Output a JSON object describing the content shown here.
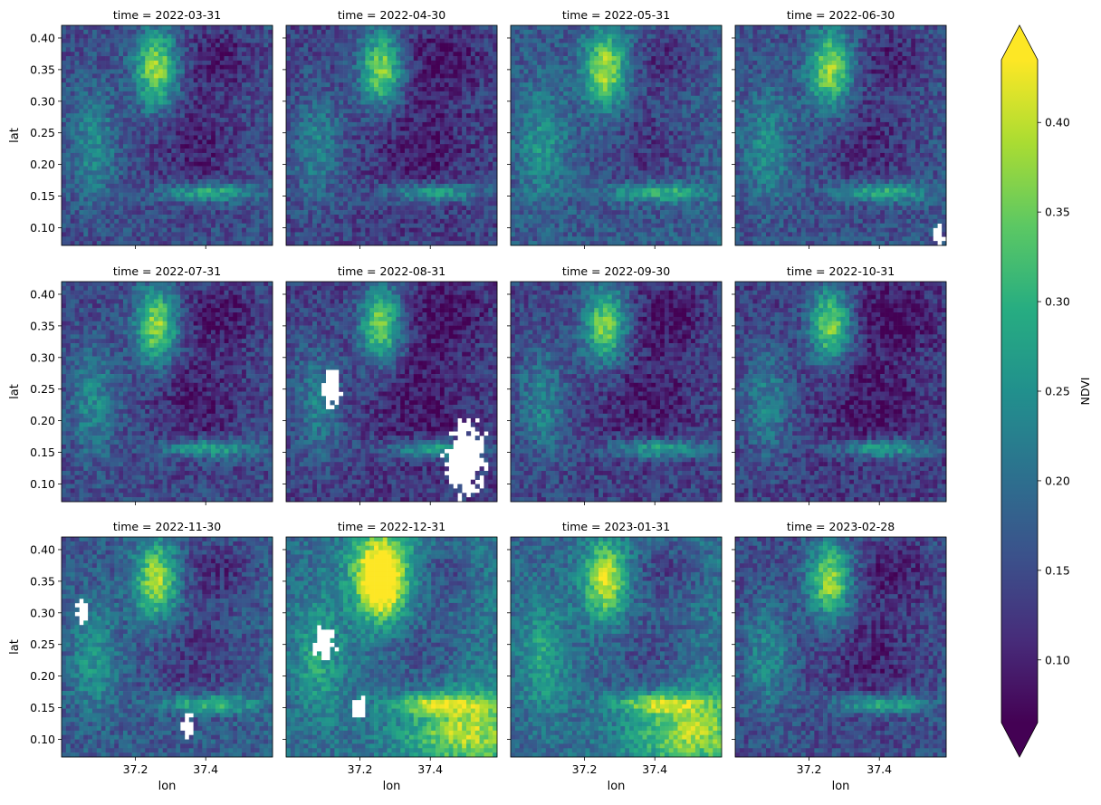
{
  "chart_data": {
    "type": "heatmap",
    "layout": "3x4 facet grid of raster maps",
    "variable": "NDVI",
    "facet_prefix": "time = ",
    "facets": [
      {
        "time": "2022-03-31",
        "row": 0,
        "col": 0,
        "missing_regions": []
      },
      {
        "time": "2022-04-30",
        "row": 0,
        "col": 1,
        "missing_regions": []
      },
      {
        "time": "2022-05-31",
        "row": 0,
        "col": 2,
        "missing_regions": []
      },
      {
        "time": "2022-06-30",
        "row": 0,
        "col": 3,
        "missing_regions": [
          {
            "lon": 37.57,
            "lat": 0.09,
            "r": 0.02
          }
        ]
      },
      {
        "time": "2022-07-31",
        "row": 1,
        "col": 0,
        "missing_regions": []
      },
      {
        "time": "2022-08-31",
        "row": 1,
        "col": 1,
        "missing_regions": [
          {
            "lon": 37.5,
            "lat": 0.14,
            "r": 0.06
          },
          {
            "lon": 37.12,
            "lat": 0.25,
            "r": 0.03
          }
        ]
      },
      {
        "time": "2022-09-30",
        "row": 1,
        "col": 2,
        "missing_regions": []
      },
      {
        "time": "2022-10-31",
        "row": 1,
        "col": 3,
        "missing_regions": []
      },
      {
        "time": "2022-11-30",
        "row": 2,
        "col": 0,
        "missing_regions": [
          {
            "lon": 37.05,
            "lat": 0.3,
            "r": 0.02
          },
          {
            "lon": 37.35,
            "lat": 0.12,
            "r": 0.02
          }
        ]
      },
      {
        "time": "2022-12-31",
        "row": 2,
        "col": 1,
        "missing_regions": [
          {
            "lon": 37.1,
            "lat": 0.25,
            "r": 0.03
          },
          {
            "lon": 37.2,
            "lat": 0.15,
            "r": 0.02
          }
        ]
      },
      {
        "time": "2023-01-31",
        "row": 2,
        "col": 2,
        "missing_regions": []
      },
      {
        "time": "2023-02-28",
        "row": 2,
        "col": 3,
        "missing_regions": []
      }
    ],
    "x_axis": {
      "label": "lon",
      "ticks": [
        37.2,
        37.4
      ],
      "tick_labels": [
        "37.2",
        "37.4"
      ],
      "range": [
        36.99,
        37.59
      ]
    },
    "y_axis": {
      "label": "lat",
      "ticks": [
        0.1,
        0.15,
        0.2,
        0.25,
        0.3,
        0.35,
        0.4
      ],
      "tick_labels": [
        "0.10",
        "0.15",
        "0.20",
        "0.25",
        "0.30",
        "0.35",
        "0.40"
      ],
      "range": [
        0.072,
        0.42
      ]
    },
    "colorbar": {
      "label": "NDVI",
      "colormap": "viridis",
      "range": [
        0.065,
        0.435
      ],
      "extend": "both",
      "ticks": [
        0.1,
        0.15,
        0.2,
        0.25,
        0.3,
        0.35,
        0.4
      ],
      "tick_labels": [
        "0.10",
        "0.15",
        "0.20",
        "0.25",
        "0.30",
        "0.35",
        "0.40"
      ]
    }
  }
}
